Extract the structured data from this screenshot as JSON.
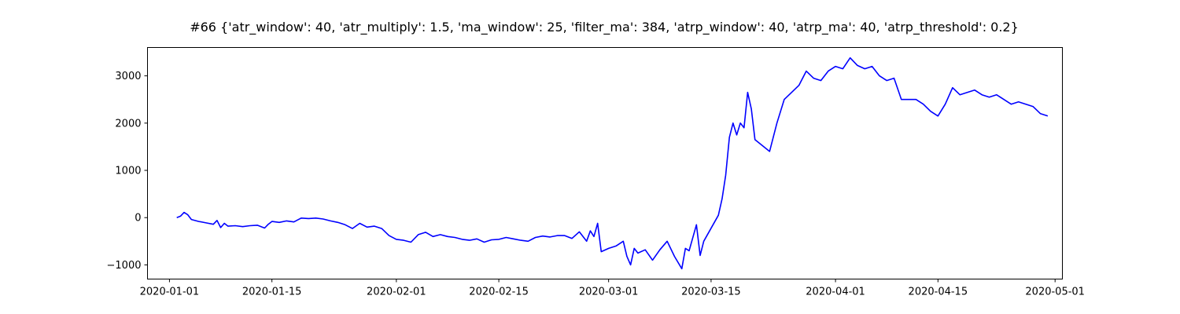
{
  "chart_data": {
    "type": "line",
    "title": "#66 {'atr_window': 40, 'atr_multiply': 1.5, 'ma_window': 25, 'filter_ma': 384, 'atrp_window': 40, 'atrp_ma': 40, 'atrp_threshold': 0.2}",
    "xlabel": "",
    "ylabel": "",
    "xlim": [
      "2019-12-29",
      "2020-05-02"
    ],
    "ylim": [
      -1300,
      3600
    ],
    "x_ticks": [
      "2020-01-01",
      "2020-01-15",
      "2020-02-01",
      "2020-02-15",
      "2020-03-01",
      "2020-03-15",
      "2020-04-01",
      "2020-04-15",
      "2020-05-01"
    ],
    "y_ticks": [
      -1000,
      0,
      1000,
      2000,
      3000
    ],
    "grid": false,
    "series": [
      {
        "color": "#0000ff",
        "points": [
          [
            "2020-01-02",
            0
          ],
          [
            "2020-01-02T12",
            30
          ],
          [
            "2020-01-03",
            110
          ],
          [
            "2020-01-03T12",
            60
          ],
          [
            "2020-01-04",
            -40
          ],
          [
            "2020-01-05",
            -80
          ],
          [
            "2020-01-06",
            -110
          ],
          [
            "2020-01-07",
            -140
          ],
          [
            "2020-01-07T12",
            -60
          ],
          [
            "2020-01-08",
            -210
          ],
          [
            "2020-01-08T12",
            -120
          ],
          [
            "2020-01-09",
            -180
          ],
          [
            "2020-01-10",
            -170
          ],
          [
            "2020-01-11",
            -190
          ],
          [
            "2020-01-12",
            -170
          ],
          [
            "2020-01-13",
            -160
          ],
          [
            "2020-01-14",
            -220
          ],
          [
            "2020-01-14T12",
            -140
          ],
          [
            "2020-01-15",
            -80
          ],
          [
            "2020-01-16",
            -100
          ],
          [
            "2020-01-17",
            -70
          ],
          [
            "2020-01-18",
            -90
          ],
          [
            "2020-01-19",
            -10
          ],
          [
            "2020-01-20",
            -20
          ],
          [
            "2020-01-21",
            -10
          ],
          [
            "2020-01-22",
            -30
          ],
          [
            "2020-01-23",
            -70
          ],
          [
            "2020-01-24",
            -100
          ],
          [
            "2020-01-25",
            -150
          ],
          [
            "2020-01-26",
            -230
          ],
          [
            "2020-01-27",
            -120
          ],
          [
            "2020-01-28",
            -200
          ],
          [
            "2020-01-29",
            -180
          ],
          [
            "2020-01-30",
            -230
          ],
          [
            "2020-01-31",
            -380
          ],
          [
            "2020-02-01",
            -460
          ],
          [
            "2020-02-02",
            -480
          ],
          [
            "2020-02-03",
            -520
          ],
          [
            "2020-02-04",
            -360
          ],
          [
            "2020-02-05",
            -310
          ],
          [
            "2020-02-06",
            -400
          ],
          [
            "2020-02-07",
            -360
          ],
          [
            "2020-02-08",
            -400
          ],
          [
            "2020-02-09",
            -420
          ],
          [
            "2020-02-10",
            -460
          ],
          [
            "2020-02-11",
            -480
          ],
          [
            "2020-02-12",
            -450
          ],
          [
            "2020-02-13",
            -520
          ],
          [
            "2020-02-14",
            -470
          ],
          [
            "2020-02-15",
            -460
          ],
          [
            "2020-02-16",
            -420
          ],
          [
            "2020-02-17",
            -450
          ],
          [
            "2020-02-18",
            -480
          ],
          [
            "2020-02-19",
            -500
          ],
          [
            "2020-02-20",
            -420
          ],
          [
            "2020-02-21",
            -390
          ],
          [
            "2020-02-22",
            -410
          ],
          [
            "2020-02-23",
            -380
          ],
          [
            "2020-02-24",
            -380
          ],
          [
            "2020-02-25",
            -440
          ],
          [
            "2020-02-26",
            -300
          ],
          [
            "2020-02-27",
            -500
          ],
          [
            "2020-02-27T12",
            -280
          ],
          [
            "2020-02-28",
            -400
          ],
          [
            "2020-02-28T12",
            -120
          ],
          [
            "2020-02-29",
            -720
          ],
          [
            "2020-03-01",
            -650
          ],
          [
            "2020-03-02",
            -600
          ],
          [
            "2020-03-03",
            -500
          ],
          [
            "2020-03-03T12",
            -820
          ],
          [
            "2020-03-04",
            -1000
          ],
          [
            "2020-03-04T12",
            -650
          ],
          [
            "2020-03-05",
            -750
          ],
          [
            "2020-03-06",
            -680
          ],
          [
            "2020-03-07",
            -900
          ],
          [
            "2020-03-08",
            -680
          ],
          [
            "2020-03-09",
            -500
          ],
          [
            "2020-03-10",
            -820
          ],
          [
            "2020-03-11",
            -1080
          ],
          [
            "2020-03-11T12",
            -650
          ],
          [
            "2020-03-12",
            -700
          ],
          [
            "2020-03-13",
            -150
          ],
          [
            "2020-03-13T12",
            -800
          ],
          [
            "2020-03-14",
            -500
          ],
          [
            "2020-03-16",
            50
          ],
          [
            "2020-03-16T12",
            400
          ],
          [
            "2020-03-17",
            900
          ],
          [
            "2020-03-17T12",
            1700
          ],
          [
            "2020-03-18",
            2000
          ],
          [
            "2020-03-18T12",
            1750
          ],
          [
            "2020-03-19",
            2000
          ],
          [
            "2020-03-19T12",
            1900
          ],
          [
            "2020-03-20",
            2650
          ],
          [
            "2020-03-20T12",
            2300
          ],
          [
            "2020-03-21",
            1650
          ],
          [
            "2020-03-23",
            1400
          ],
          [
            "2020-03-24",
            2000
          ],
          [
            "2020-03-25",
            2500
          ],
          [
            "2020-03-26",
            2650
          ],
          [
            "2020-03-27",
            2800
          ],
          [
            "2020-03-28",
            3100
          ],
          [
            "2020-03-29",
            2950
          ],
          [
            "2020-03-30",
            2900
          ],
          [
            "2020-03-31",
            3100
          ],
          [
            "2020-04-01",
            3200
          ],
          [
            "2020-04-02",
            3150
          ],
          [
            "2020-04-03",
            3380
          ],
          [
            "2020-04-04",
            3220
          ],
          [
            "2020-04-05",
            3150
          ],
          [
            "2020-04-06",
            3200
          ],
          [
            "2020-04-07",
            3000
          ],
          [
            "2020-04-08",
            2900
          ],
          [
            "2020-04-09",
            2950
          ],
          [
            "2020-04-10",
            2500
          ],
          [
            "2020-04-12",
            2500
          ],
          [
            "2020-04-13",
            2400
          ],
          [
            "2020-04-14",
            2250
          ],
          [
            "2020-04-15",
            2150
          ],
          [
            "2020-04-16",
            2400
          ],
          [
            "2020-04-17",
            2750
          ],
          [
            "2020-04-18",
            2600
          ],
          [
            "2020-04-19",
            2650
          ],
          [
            "2020-04-20",
            2700
          ],
          [
            "2020-04-21",
            2600
          ],
          [
            "2020-04-22",
            2550
          ],
          [
            "2020-04-23",
            2600
          ],
          [
            "2020-04-24",
            2500
          ],
          [
            "2020-04-25",
            2400
          ],
          [
            "2020-04-26",
            2450
          ],
          [
            "2020-04-27",
            2400
          ],
          [
            "2020-04-28",
            2350
          ],
          [
            "2020-04-29",
            2200
          ],
          [
            "2020-04-30",
            2150
          ]
        ]
      }
    ]
  }
}
